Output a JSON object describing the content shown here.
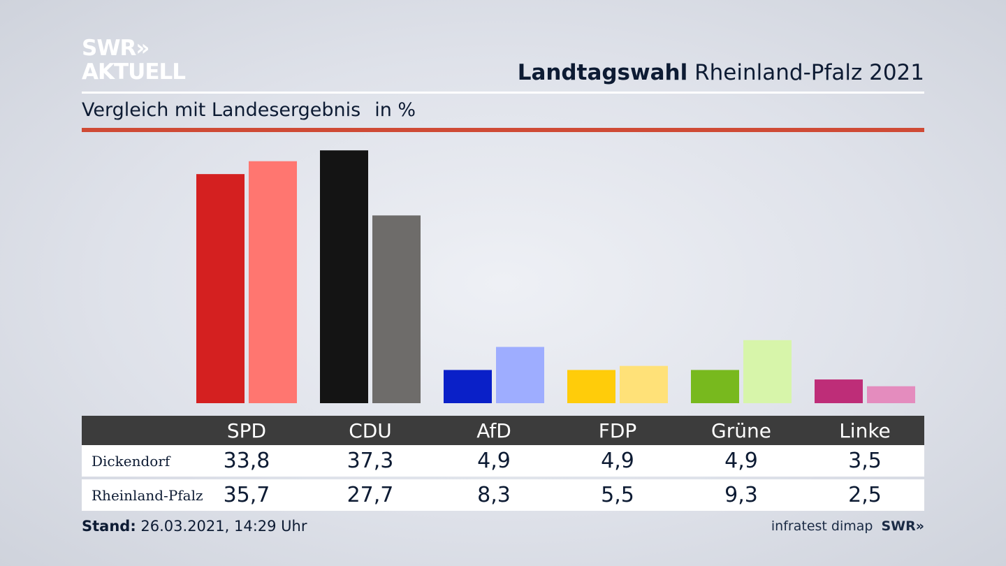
{
  "logo": {
    "line1": "SWR»",
    "line2": "AKTUELL"
  },
  "header": {
    "title_bold": "Landtagswahl",
    "title_rest": " Rheinland-Pfalz 2021"
  },
  "subheader": {
    "text": "Vergleich mit Landesergebnis",
    "unit": "in %"
  },
  "footer": {
    "stand_label": "Stand:",
    "stand_value": " 26.03.2021, 14:29 Uhr",
    "source": "infratest dimap",
    "source_logo": "SWR»"
  },
  "colors": {
    "accent_red": "#cf4a35",
    "table_header": "#3c3c3c"
  },
  "chart_data": {
    "type": "bar",
    "categories": [
      "SPD",
      "CDU",
      "AfD",
      "FDP",
      "Grüne",
      "Linke"
    ],
    "series": [
      {
        "name": "Dickendorf",
        "values": [
          33.8,
          37.3,
          4.9,
          4.9,
          4.9,
          3.5
        ],
        "display": [
          "33,8",
          "37,3",
          "4,9",
          "4,9",
          "4,9",
          "3,5"
        ],
        "colors": [
          "#d42020",
          "#141414",
          "#0a20c8",
          "#ffcc0a",
          "#78b91e",
          "#be2d78"
        ]
      },
      {
        "name": "Rheinland-Pfalz",
        "values": [
          35.7,
          27.7,
          8.3,
          5.5,
          9.3,
          2.5
        ],
        "display": [
          "35,7",
          "27,7",
          "8,3",
          "5,5",
          "9,3",
          "2,5"
        ],
        "colors": [
          "#ff7670",
          "#6e6c6a",
          "#9eadff",
          "#ffe178",
          "#d7f5aa",
          "#e48cbe"
        ]
      }
    ]
  }
}
